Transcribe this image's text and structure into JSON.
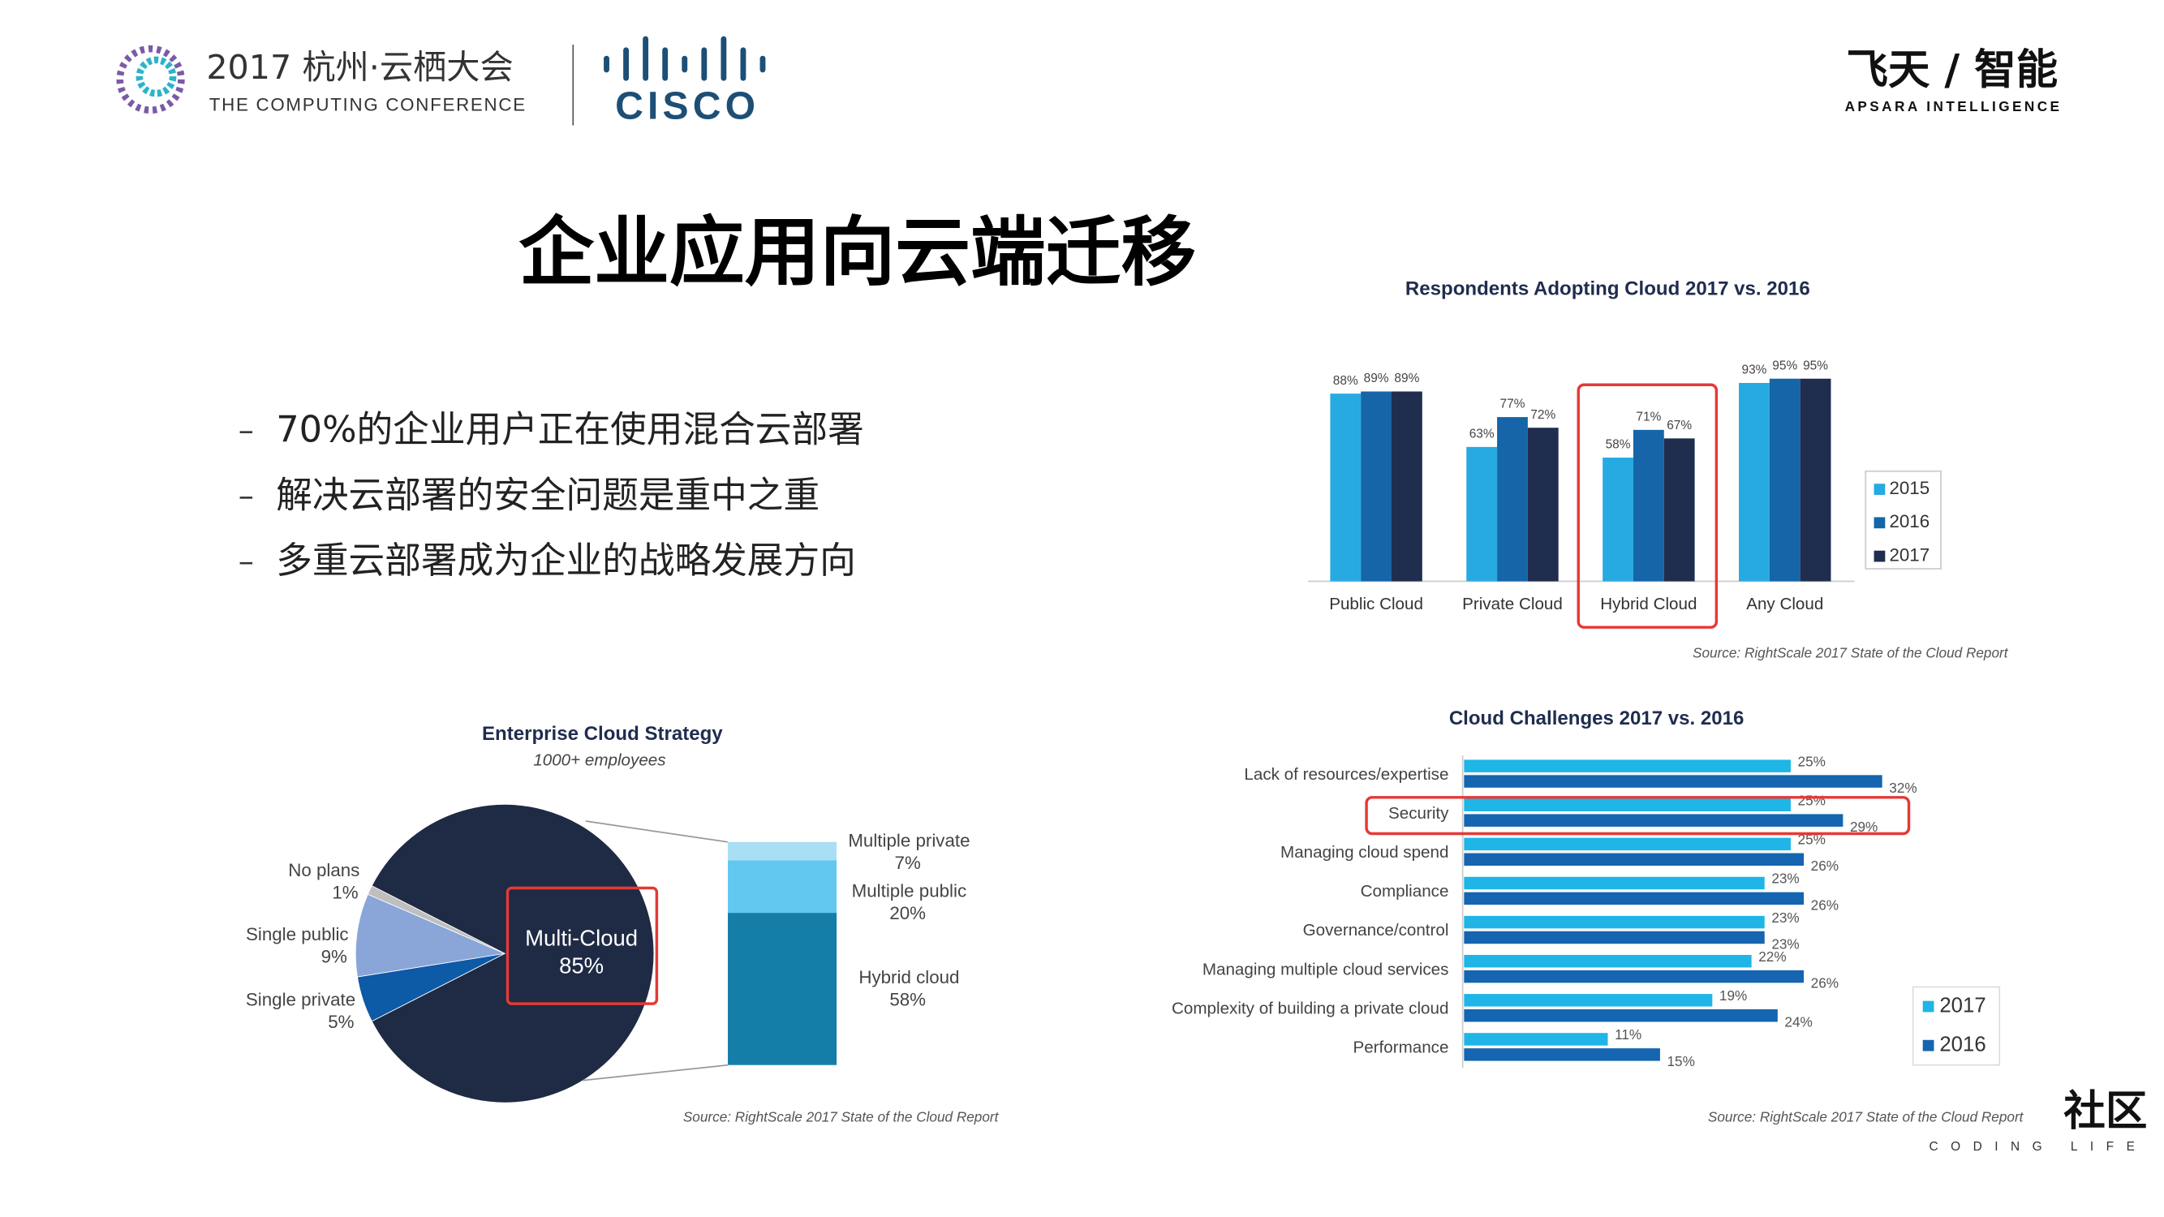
{
  "header": {
    "event": "2017 杭州·云栖大会",
    "event_subtitle": "THE COMPUTING CONFERENCE",
    "partner": "CISCO",
    "brand": "飞天 / 智能",
    "brand_subtitle": "APSARA INTELLIGENCE"
  },
  "title": "企业应用向云端迁移",
  "bullets": [
    "70%的企业用户正在使用混合云部署",
    "解决云部署的安全问题是重中之重",
    "多重云部署成为企业的战略发展方向"
  ],
  "watermark": {
    "name": "社区",
    "tagline": "CODING LIFE"
  },
  "chart_data": [
    {
      "type": "bar",
      "title": "Respondents Adopting Cloud 2017 vs. 2016",
      "categories": [
        "Public Cloud",
        "Private Cloud",
        "Hybrid Cloud",
        "Any Cloud"
      ],
      "series": [
        {
          "name": "2015",
          "color": "#27aae1",
          "values": [
            88,
            63,
            58,
            93
          ],
          "value_labels": [
            "88%",
            "63%",
            "58%",
            "93%"
          ]
        },
        {
          "name": "2016",
          "color": "#1565a8",
          "values": [
            89,
            77,
            71,
            95
          ],
          "value_labels": [
            "89%",
            "77%",
            "71%",
            "95%"
          ]
        },
        {
          "name": "2017",
          "color": "#1f2d4e",
          "values": [
            89,
            72,
            67,
            95
          ],
          "value_labels": [
            "89%",
            "72%",
            "67%",
            "95%"
          ]
        }
      ],
      "ylim": [
        0,
        100
      ],
      "source": "Source: RightScale 2017 State of the Cloud Report"
    },
    {
      "type": "pie",
      "title": "Enterprise Cloud Strategy",
      "subtitle": "1000+ employees",
      "categories": [
        "Multi-Cloud",
        "Single private",
        "Single public",
        "No plans"
      ],
      "values": [
        85,
        5,
        9,
        1
      ],
      "value_labels": [
        "85%",
        "5%",
        "9%",
        "1%"
      ],
      "colors": [
        "#1f2a44",
        "#0d5aa7",
        "#8aa6d8",
        "#bfbfbf"
      ],
      "breakdown": {
        "categories": [
          "Multiple private",
          "Multiple public",
          "Hybrid cloud"
        ],
        "values": [
          7,
          20,
          58
        ],
        "value_labels": [
          "7%",
          "20%",
          "58%"
        ],
        "colors": [
          "#a8dff5",
          "#63c8f0",
          "#147ea8"
        ]
      },
      "source": "Source: RightScale 2017 State of the Cloud Report"
    },
    {
      "type": "bar",
      "orientation": "horizontal",
      "title": "Cloud Challenges 2017 vs. 2016",
      "categories": [
        "Lack of resources/expertise",
        "Security",
        "Managing cloud spend",
        "Compliance",
        "Governance/control",
        "Managing multiple cloud services",
        "Complexity of building a private cloud",
        "Performance"
      ],
      "series": [
        {
          "name": "2017",
          "color": "#1fb5e6",
          "values": [
            25,
            25,
            25,
            23,
            23,
            22,
            19,
            11
          ],
          "value_labels": [
            "25%",
            "25%",
            "25%",
            "23%",
            "23%",
            "22%",
            "19%",
            "11%"
          ]
        },
        {
          "name": "2016",
          "color": "#1565b0",
          "values": [
            32,
            29,
            26,
            26,
            23,
            26,
            24,
            15
          ],
          "value_labels": [
            "32%",
            "29%",
            "26%",
            "26%",
            "23%",
            "26%",
            "24%",
            "15%"
          ]
        }
      ],
      "xlim": [
        0,
        35
      ],
      "source": "Source: RightScale 2017 State of the Cloud Report"
    }
  ]
}
